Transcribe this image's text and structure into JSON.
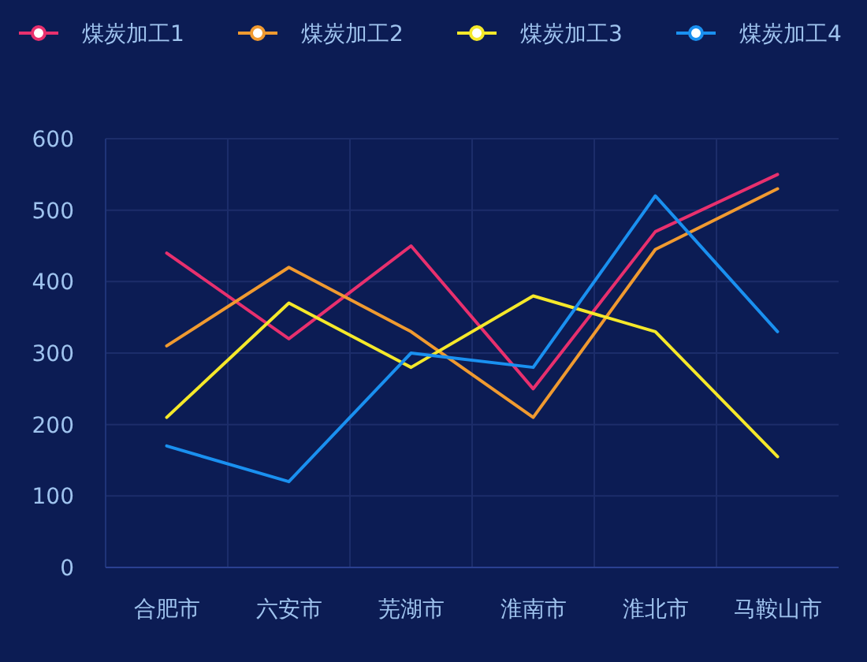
{
  "chart_data": {
    "type": "line",
    "categories": [
      "合肥市",
      "六安市",
      "芜湖市",
      "淮南市",
      "淮北市",
      "马鞍山市"
    ],
    "series": [
      {
        "name": "煤炭加工1",
        "color": "#e8306e",
        "values": [
          440,
          320,
          450,
          250,
          470,
          550
        ]
      },
      {
        "name": "煤炭加工2",
        "color": "#f09a30",
        "values": [
          310,
          420,
          330,
          210,
          445,
          530
        ]
      },
      {
        "name": "煤炭加工3",
        "color": "#f5e82a",
        "values": [
          210,
          370,
          280,
          380,
          330,
          155
        ]
      },
      {
        "name": "煤炭加工4",
        "color": "#1a90f0",
        "values": [
          170,
          120,
          300,
          280,
          520,
          330
        ]
      }
    ],
    "ylim": [
      0,
      600
    ],
    "yticks": [
      0,
      100,
      200,
      300,
      400,
      500,
      600
    ],
    "grid": true,
    "legend": "top"
  }
}
